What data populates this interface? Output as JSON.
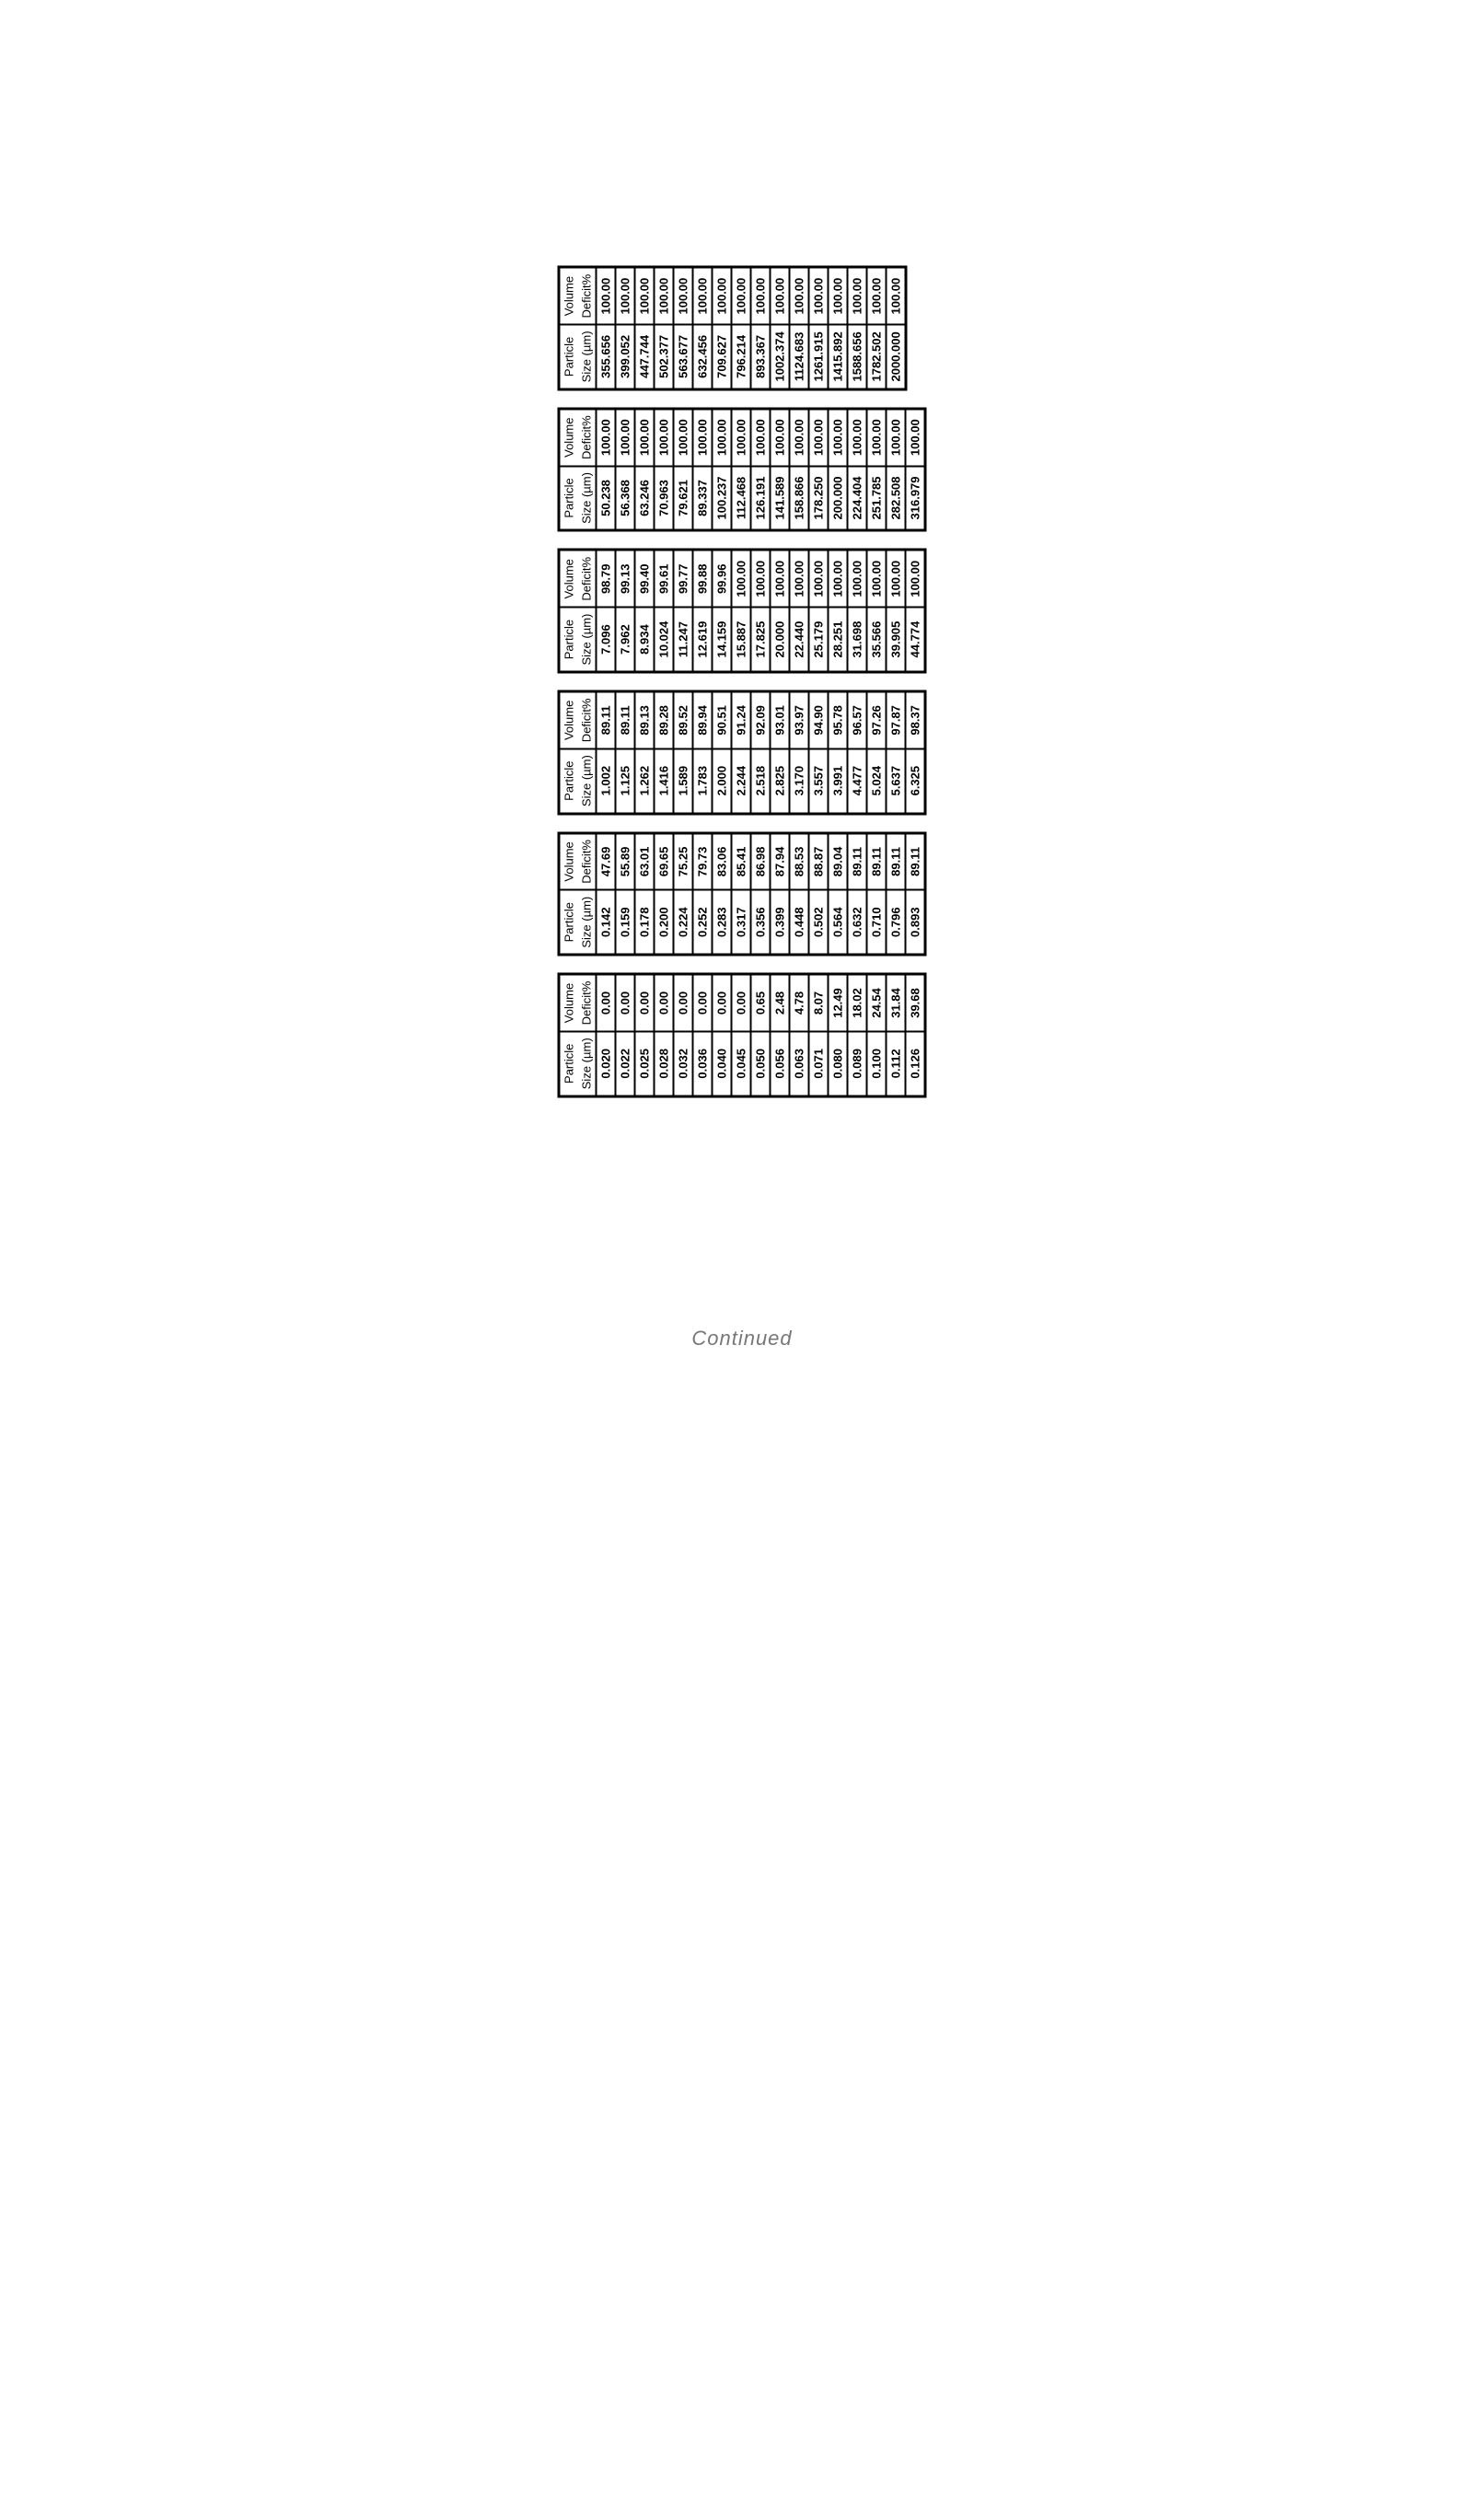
{
  "headers": {
    "col1_top": "Particle",
    "col1_bot": "Size (µm)",
    "col2_top": "Volume",
    "col2_bot": "Deficit%"
  },
  "tables": [
    {
      "rows": [
        [
          "0.020",
          "0.00"
        ],
        [
          "0.022",
          "0.00"
        ],
        [
          "0.025",
          "0.00"
        ],
        [
          "0.028",
          "0.00"
        ],
        [
          "0.032",
          "0.00"
        ],
        [
          "0.036",
          "0.00"
        ],
        [
          "0.040",
          "0.00"
        ],
        [
          "0.045",
          "0.00"
        ],
        [
          "0.050",
          "0.65"
        ],
        [
          "0.056",
          "2.48"
        ],
        [
          "0.063",
          "4.78"
        ],
        [
          "0.071",
          "8.07"
        ],
        [
          "0.080",
          "12.49"
        ],
        [
          "0.089",
          "18.02"
        ],
        [
          "0.100",
          "24.54"
        ],
        [
          "0.112",
          "31.84"
        ],
        [
          "0.126",
          "39.68"
        ]
      ]
    },
    {
      "rows": [
        [
          "0.142",
          "47.69"
        ],
        [
          "0.159",
          "55.89"
        ],
        [
          "0.178",
          "63.01"
        ],
        [
          "0.200",
          "69.65"
        ],
        [
          "0.224",
          "75.25"
        ],
        [
          "0.252",
          "79.73"
        ],
        [
          "0.283",
          "83.06"
        ],
        [
          "0.317",
          "85.41"
        ],
        [
          "0.356",
          "86.98"
        ],
        [
          "0.399",
          "87.94"
        ],
        [
          "0.448",
          "88.53"
        ],
        [
          "0.502",
          "88.87"
        ],
        [
          "0.564",
          "89.04"
        ],
        [
          "0.632",
          "89.11"
        ],
        [
          "0.710",
          "89.11"
        ],
        [
          "0.796",
          "89.11"
        ],
        [
          "0.893",
          "89.11"
        ]
      ]
    },
    {
      "rows": [
        [
          "1.002",
          "89.11"
        ],
        [
          "1.125",
          "89.11"
        ],
        [
          "1.262",
          "89.13"
        ],
        [
          "1.416",
          "89.28"
        ],
        [
          "1.589",
          "89.52"
        ],
        [
          "1.783",
          "89.94"
        ],
        [
          "2.000",
          "90.51"
        ],
        [
          "2.244",
          "91.24"
        ],
        [
          "2.518",
          "92.09"
        ],
        [
          "2.825",
          "93.01"
        ],
        [
          "3.170",
          "93.97"
        ],
        [
          "3.557",
          "94.90"
        ],
        [
          "3.991",
          "95.78"
        ],
        [
          "4.477",
          "96.57"
        ],
        [
          "5.024",
          "97.26"
        ],
        [
          "5.637",
          "97.87"
        ],
        [
          "6.325",
          "98.37"
        ]
      ]
    },
    {
      "rows": [
        [
          "7.096",
          "98.79"
        ],
        [
          "7.962",
          "99.13"
        ],
        [
          "8.934",
          "99.40"
        ],
        [
          "10.024",
          "99.61"
        ],
        [
          "11.247",
          "99.77"
        ],
        [
          "12.619",
          "99.88"
        ],
        [
          "14.159",
          "99.96"
        ],
        [
          "15.887",
          "100.00"
        ],
        [
          "17.825",
          "100.00"
        ],
        [
          "20.000",
          "100.00"
        ],
        [
          "22.440",
          "100.00"
        ],
        [
          "25.179",
          "100.00"
        ],
        [
          "28.251",
          "100.00"
        ],
        [
          "31.698",
          "100.00"
        ],
        [
          "35.566",
          "100.00"
        ],
        [
          "39.905",
          "100.00"
        ],
        [
          "44.774",
          "100.00"
        ]
      ]
    },
    {
      "rows": [
        [
          "50.238",
          "100.00"
        ],
        [
          "56.368",
          "100.00"
        ],
        [
          "63.246",
          "100.00"
        ],
        [
          "70.963",
          "100.00"
        ],
        [
          "79.621",
          "100.00"
        ],
        [
          "89.337",
          "100.00"
        ],
        [
          "100.237",
          "100.00"
        ],
        [
          "112.468",
          "100.00"
        ],
        [
          "126.191",
          "100.00"
        ],
        [
          "141.589",
          "100.00"
        ],
        [
          "158.866",
          "100.00"
        ],
        [
          "178.250",
          "100.00"
        ],
        [
          "200.000",
          "100.00"
        ],
        [
          "224.404",
          "100.00"
        ],
        [
          "251.785",
          "100.00"
        ],
        [
          "282.508",
          "100.00"
        ],
        [
          "316.979",
          "100.00"
        ]
      ]
    },
    {
      "rows": [
        [
          "355.656",
          "100.00"
        ],
        [
          "399.052",
          "100.00"
        ],
        [
          "447.744",
          "100.00"
        ],
        [
          "502.377",
          "100.00"
        ],
        [
          "563.677",
          "100.00"
        ],
        [
          "632.456",
          "100.00"
        ],
        [
          "709.627",
          "100.00"
        ],
        [
          "796.214",
          "100.00"
        ],
        [
          "893.367",
          "100.00"
        ],
        [
          "1002.374",
          "100.00"
        ],
        [
          "1124.683",
          "100.00"
        ],
        [
          "1261.915",
          "100.00"
        ],
        [
          "1415.892",
          "100.00"
        ],
        [
          "1588.656",
          "100.00"
        ],
        [
          "1782.502",
          "100.00"
        ],
        [
          "2000.000",
          "100.00"
        ]
      ]
    }
  ],
  "footer": "Continued",
  "style": {
    "background_color": "#ffffff",
    "text_color": "#000000",
    "border_color": "#000000",
    "font_family": "Arial, sans-serif",
    "cell_fontsize": 13,
    "continued_color": "#777777",
    "continued_fontsize": 22,
    "orientation": "rotated -90deg (portrait page with landscape tables)"
  }
}
